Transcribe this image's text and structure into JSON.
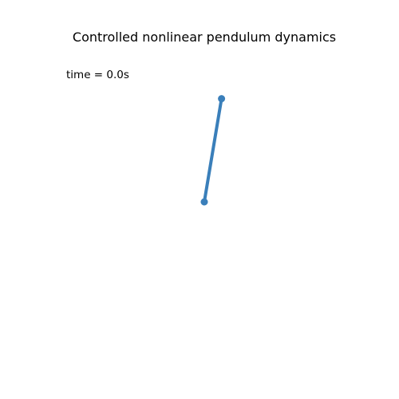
{
  "chart_data": {
    "type": "line",
    "title": "Controlled nonlinear pendulum dynamics",
    "annotation": "time = 0.0s",
    "axis_visible": false,
    "grid": false,
    "xlim": [
      -1.2,
      1.2
    ],
    "ylim": [
      -1.2,
      1.2
    ],
    "series": [
      {
        "x": [
          0,
          0.27
        ],
        "y": [
          0,
          0.97
        ]
      }
    ]
  },
  "colors": {
    "rod": "#3a7fba",
    "background": "#ffffff"
  }
}
